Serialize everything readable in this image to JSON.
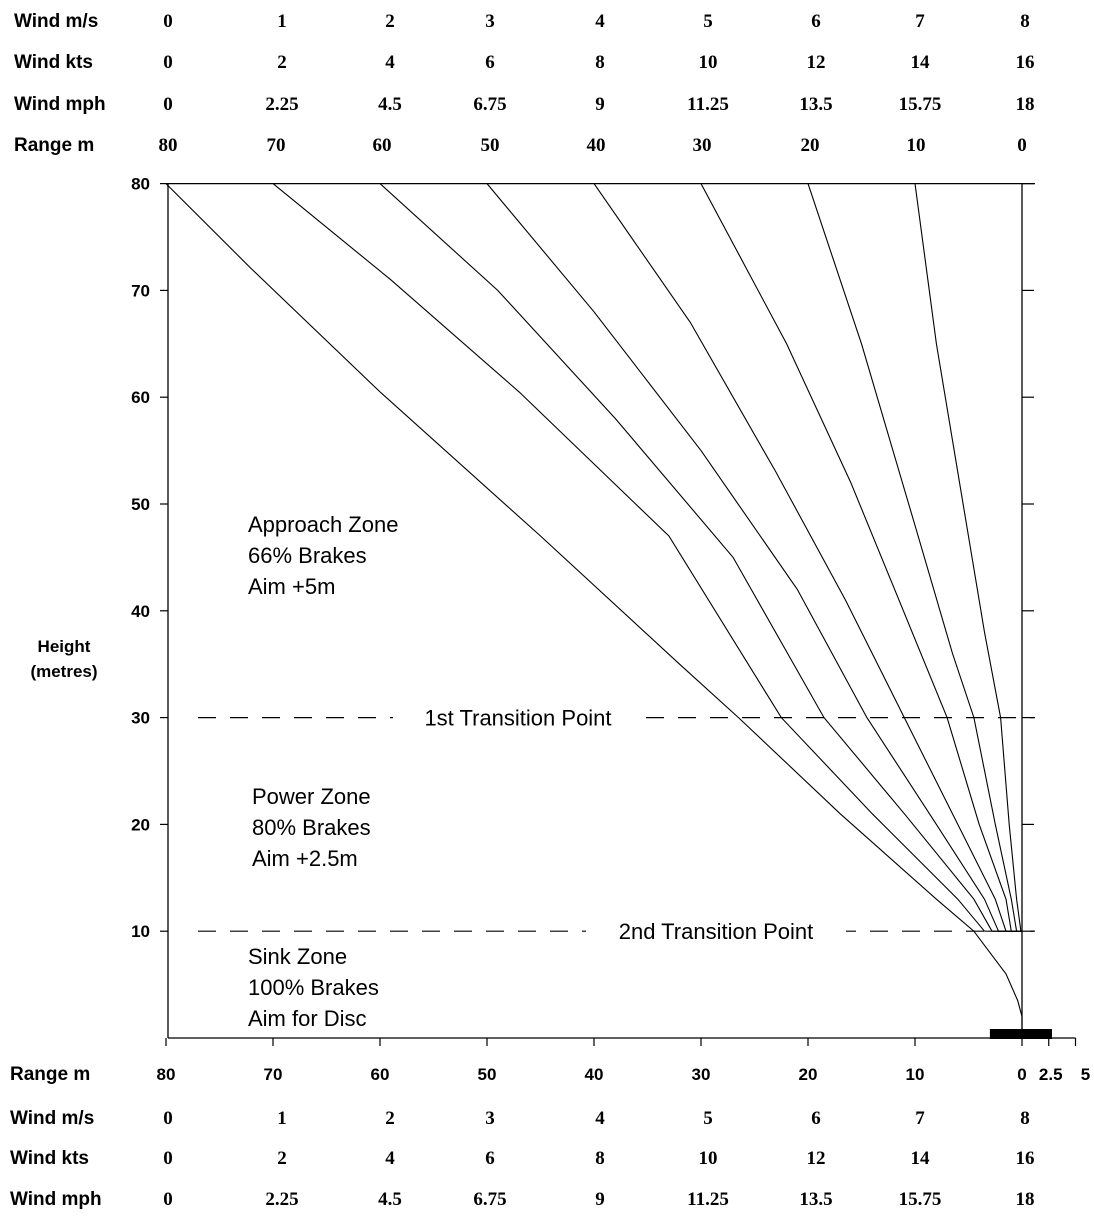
{
  "chart_data": {
    "type": "line",
    "ylabel": [
      "Height",
      "(metres)"
    ],
    "xlim": [
      80,
      0
    ],
    "ylim": [
      0,
      80
    ],
    "y_ticks": [
      "80",
      "70",
      "60",
      "50",
      "40",
      "30",
      "20",
      "10"
    ],
    "x_ticks": [
      "80",
      "70",
      "60",
      "50",
      "40",
      "30",
      "20",
      "10",
      "0",
      "2.5",
      "5"
    ],
    "rows": {
      "wind_ms": {
        "label": "Wind  m/s",
        "values": [
          "0",
          "1",
          "2",
          "3",
          "4",
          "5",
          "6",
          "7",
          "8"
        ]
      },
      "wind_kts": {
        "label": "Wind  kts",
        "values": [
          "0",
          "2",
          "4",
          "6",
          "8",
          "10",
          "12",
          "14",
          "16"
        ]
      },
      "wind_mph": {
        "label": "Wind mph",
        "values": [
          "0",
          "2.25",
          "4.5",
          "6.75",
          "9",
          "11.25",
          "13.5",
          "15.75",
          "18"
        ]
      },
      "range_m": {
        "label": "Range m",
        "values": [
          "80",
          "70",
          "60",
          "50",
          "40",
          "30",
          "20",
          "10",
          "0"
        ]
      }
    },
    "transition_lines": [
      {
        "label": "1st Transition Point",
        "y": 30
      },
      {
        "label": "2nd Transition Point",
        "y": 10
      }
    ],
    "zones": [
      {
        "name": "approach",
        "lines": [
          "Approach Zone",
          "66% Brakes",
          "Aim +5m"
        ]
      },
      {
        "name": "power",
        "lines": [
          "Power Zone",
          "80% Brakes",
          "Aim +2.5m"
        ]
      },
      {
        "name": "sink",
        "lines": [
          "Sink Zone",
          "100% Brakes",
          "Aim for Disc"
        ]
      }
    ],
    "disc": {
      "x_from": 3,
      "x_to": -2.8
    },
    "series": [
      {
        "points": [
          [
            80,
            80
          ],
          [
            72,
            72
          ],
          [
            60,
            60.5
          ],
          [
            45,
            47
          ],
          [
            32,
            35
          ],
          [
            26.5,
            30
          ],
          [
            17,
            21
          ],
          [
            8,
            13
          ],
          [
            4.5,
            10
          ],
          [
            3,
            8
          ],
          [
            1.5,
            6
          ],
          [
            0.4,
            3.5
          ],
          [
            0,
            2
          ],
          [
            0,
            0
          ]
        ]
      },
      {
        "points": [
          [
            70,
            80
          ],
          [
            59,
            71
          ],
          [
            47,
            60.5
          ],
          [
            33,
            47
          ],
          [
            22.5,
            30
          ],
          [
            14,
            21
          ],
          [
            6,
            13
          ],
          [
            3.5,
            10
          ]
        ]
      },
      {
        "points": [
          [
            60,
            80
          ],
          [
            49,
            70
          ],
          [
            38,
            58
          ],
          [
            27,
            45
          ],
          [
            18.5,
            30
          ],
          [
            11,
            21
          ],
          [
            4.5,
            13
          ],
          [
            2.8,
            10
          ]
        ]
      },
      {
        "points": [
          [
            50,
            80
          ],
          [
            40,
            68
          ],
          [
            30,
            55
          ],
          [
            21,
            42
          ],
          [
            14.5,
            30
          ],
          [
            8,
            20
          ],
          [
            3.5,
            13
          ],
          [
            2.2,
            10
          ]
        ]
      },
      {
        "points": [
          [
            40,
            80
          ],
          [
            31,
            67
          ],
          [
            23,
            53
          ],
          [
            16.5,
            41
          ],
          [
            11,
            30
          ],
          [
            6,
            20
          ],
          [
            2.5,
            13
          ],
          [
            1.5,
            10
          ]
        ]
      },
      {
        "points": [
          [
            30,
            80
          ],
          [
            22,
            65
          ],
          [
            16,
            52
          ],
          [
            11.5,
            41
          ],
          [
            7,
            30
          ],
          [
            4,
            20
          ],
          [
            1.5,
            13
          ],
          [
            1,
            10
          ]
        ]
      },
      {
        "points": [
          [
            20,
            80
          ],
          [
            15,
            65
          ],
          [
            10,
            48
          ],
          [
            6.5,
            36
          ],
          [
            4.5,
            30
          ],
          [
            2.5,
            20
          ],
          [
            1,
            13
          ],
          [
            0.5,
            10
          ]
        ]
      },
      {
        "points": [
          [
            10,
            80
          ],
          [
            8,
            65
          ],
          [
            5.5,
            50
          ],
          [
            3.5,
            38
          ],
          [
            2,
            30
          ],
          [
            1.2,
            20
          ],
          [
            0.5,
            13
          ],
          [
            0.1,
            10
          ]
        ]
      }
    ]
  }
}
